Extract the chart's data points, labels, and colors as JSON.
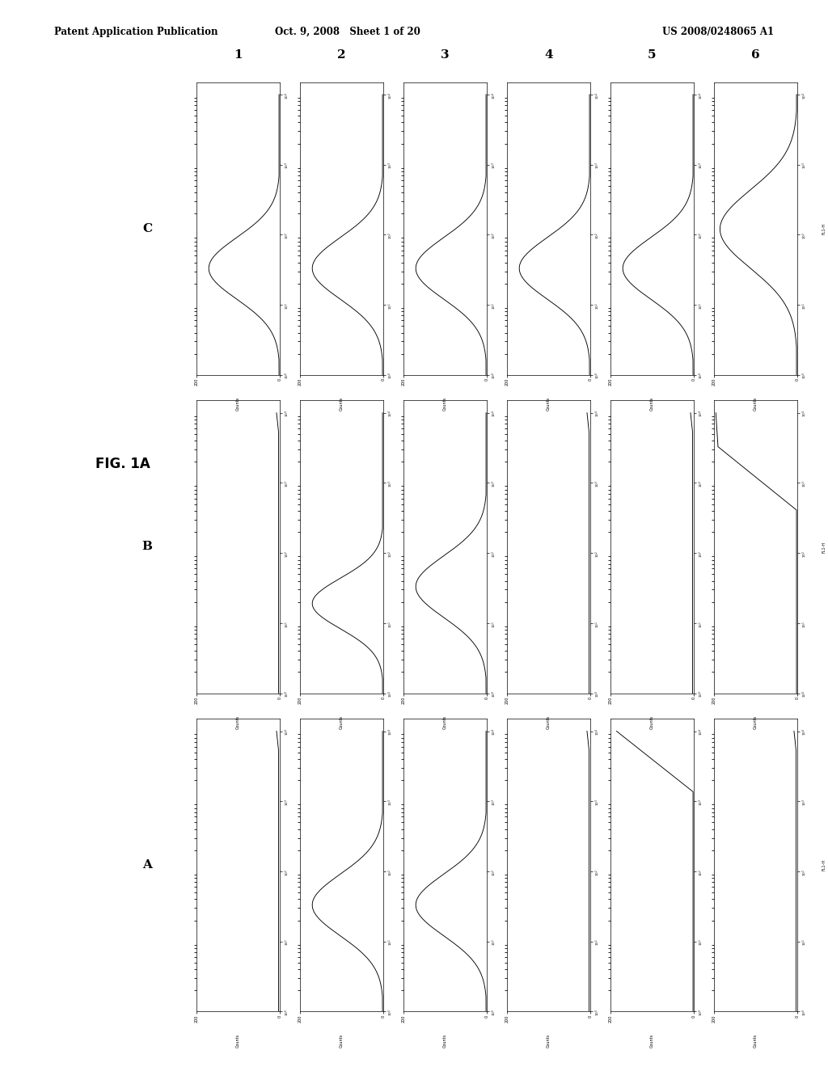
{
  "title_left": "Patent Application Publication",
  "title_center": "Oct. 9, 2008   Sheet 1 of 20",
  "title_right": "US 2008/0248065 A1",
  "fig_label": "FIG. 1A",
  "rows": [
    "A",
    "B",
    "C"
  ],
  "cols": [
    "1",
    "2",
    "3",
    "4",
    "5",
    "6"
  ],
  "background": "#ffffff",
  "curve_shapes": {
    "A1": "flat_low",
    "A2": "bell_mid",
    "A3": "bell_mid",
    "A4": "flat_low",
    "A5": "uptick_right",
    "A6": "flat_low",
    "B1": "flat_low",
    "B2": "bell_low_mid",
    "B3": "bell_mid",
    "B4": "flat_low",
    "B5": "flat_low",
    "B6": "uptick_right_steep",
    "C1": "bell_mid",
    "C2": "bell_mid",
    "C3": "bell_mid",
    "C4": "bell_mid",
    "C5": "bell_mid",
    "C6": "bell_mid_right"
  }
}
